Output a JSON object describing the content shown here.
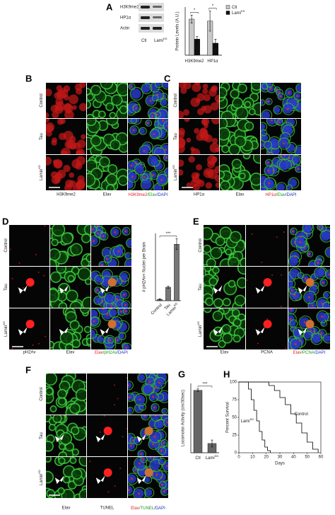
{
  "panels": {
    "A": {
      "letter": "A",
      "blot_rows": [
        "H3K9me2",
        "HP1α",
        "Actin"
      ],
      "lanes": [
        {
          "text": "Ctl"
        },
        {
          "text": "Lami",
          "sup": "KD"
        }
      ]
    },
    "B": {
      "letter": "B",
      "rows": [
        {
          "text": "Control"
        },
        {
          "text": "Tau"
        },
        {
          "text": "Lamin",
          "sup": "KD"
        }
      ],
      "columns": [
        {
          "text": "H3K9me2"
        },
        {
          "text": "Elav"
        },
        {
          "parts": [
            {
              "text": "H3K9me2",
              "color": "#e0202a"
            },
            {
              "text": "/Elav",
              "color": "#1a9a1a"
            },
            {
              "text": "/DAPI",
              "color": "#2030c0"
            }
          ]
        }
      ]
    },
    "C": {
      "letter": "C",
      "rows": [
        {
          "text": "Control"
        },
        {
          "text": "Tau"
        },
        {
          "text": "Lamin",
          "sup": "KD"
        }
      ],
      "columns": [
        {
          "text": "HP1α"
        },
        {
          "text": "Elav"
        },
        {
          "parts": [
            {
              "text": "HP1α",
              "color": "#e0202a"
            },
            {
              "text": "/Elav",
              "color": "#1a9a1a"
            },
            {
              "text": "/DAPI",
              "color": "#2030c0"
            }
          ]
        }
      ]
    },
    "D": {
      "letter": "D",
      "rows": [
        {
          "text": "Control"
        },
        {
          "text": "Tau"
        },
        {
          "text": "Lamin",
          "sup": "KD"
        }
      ],
      "columns": [
        {
          "text": "pH2Av"
        },
        {
          "text": "Elav"
        },
        {
          "parts": [
            {
              "text": "Elav",
              "color": "#e0202a"
            },
            {
              "text": "/pH2Av",
              "color": "#1a9a1a"
            },
            {
              "text": "/DAPI",
              "color": "#2030c0"
            }
          ]
        }
      ]
    },
    "E": {
      "letter": "E",
      "rows": [
        {
          "text": "Control"
        },
        {
          "text": "Tau"
        },
        {
          "text": "Lamin",
          "sup": "KD"
        }
      ],
      "columns": [
        {
          "text": "Elav"
        },
        {
          "text": "PCNA"
        },
        {
          "parts": [
            {
              "text": "Elav",
              "color": "#e0202a"
            },
            {
              "text": "/PCNA",
              "color": "#1a9a1a"
            },
            {
              "text": "/DAPI",
              "color": "#2030c0"
            }
          ]
        }
      ]
    },
    "F": {
      "letter": "F",
      "rows": [
        {
          "text": "Control"
        },
        {
          "text": "Tau"
        },
        {
          "text": "Lamin",
          "sup": "KD"
        }
      ],
      "columns": [
        {
          "text": "Elav"
        },
        {
          "text": "TUNEL"
        },
        {
          "parts": [
            {
              "text": "Elav",
              "color": "#e0202a"
            },
            {
              "text": "/TUNEL",
              "color": "#1a9a1a"
            },
            {
              "text": "/DAPI",
              "color": "#2030c0"
            }
          ]
        }
      ]
    },
    "G": {
      "letter": "G"
    },
    "H": {
      "letter": "H"
    }
  },
  "chart_data": [
    {
      "type": "bar",
      "y_label": "Protein Levels (A.U.)",
      "categories": [
        "H3K9me2",
        "HP1α"
      ],
      "series": [
        {
          "name": "Ctl",
          "color": "#c8c8c8",
          "values": [
            0.9,
            0.85
          ],
          "errors": [
            0.1,
            0.25
          ]
        },
        {
          "name": "Lami",
          "name_sup": "KD",
          "color": "#111111",
          "values": [
            0.4,
            0.3
          ],
          "errors": [
            0.07,
            0.1
          ]
        }
      ],
      "ylim": [
        0,
        1.2
      ],
      "annotations": [
        "*",
        "*"
      ]
    },
    {
      "type": "bar",
      "y_label": "# pH2Av+ Nuclei per Brain",
      "categories": [
        "Control",
        "Tau",
        "Lamin"
      ],
      "superscripts": [
        {
          "index": 2,
          "text": "KD"
        }
      ],
      "series": [
        {
          "color": "#777777",
          "values": [
            1,
            10,
            42
          ],
          "errors": [
            0.5,
            0.8,
            4
          ]
        }
      ],
      "ylim": [
        0,
        50
      ],
      "annotations": [
        "***"
      ]
    },
    {
      "type": "bar",
      "y_label": "Locomotor Activity (cm/30sec)",
      "categories": [
        "Ctl",
        "Lami"
      ],
      "superscripts": [
        {
          "index": 1,
          "text": "KD"
        }
      ],
      "series": [
        {
          "color": "#666666",
          "values": [
            27,
            4
          ],
          "errors": [
            0.6,
            1.5
          ]
        }
      ],
      "ylim": [
        0,
        30
      ],
      "annotations": [
        "***"
      ]
    },
    {
      "type": "line",
      "x_label": "Days",
      "y_label": "Percent Survival",
      "xlim": [
        0,
        60
      ],
      "ylim": [
        0,
        100
      ],
      "xticks": [
        0,
        10,
        20,
        30,
        40,
        50,
        60
      ],
      "yticks": [
        0,
        25,
        50,
        75,
        100
      ],
      "series": [
        {
          "name": "Lami",
          "name_sup": "KD",
          "color": "#000000",
          "x": [
            0,
            5,
            7,
            9,
            11,
            13,
            15,
            17,
            19,
            21,
            23
          ],
          "values": [
            100,
            100,
            90,
            75,
            60,
            45,
            30,
            18,
            8,
            3,
            0
          ]
        },
        {
          "name": "Control",
          "color": "#000000",
          "x": [
            0,
            18,
            22,
            26,
            30,
            34,
            38,
            42,
            46,
            50,
            54,
            58
          ],
          "values": [
            100,
            100,
            95,
            88,
            78,
            68,
            55,
            42,
            28,
            15,
            5,
            0
          ]
        }
      ]
    }
  ]
}
